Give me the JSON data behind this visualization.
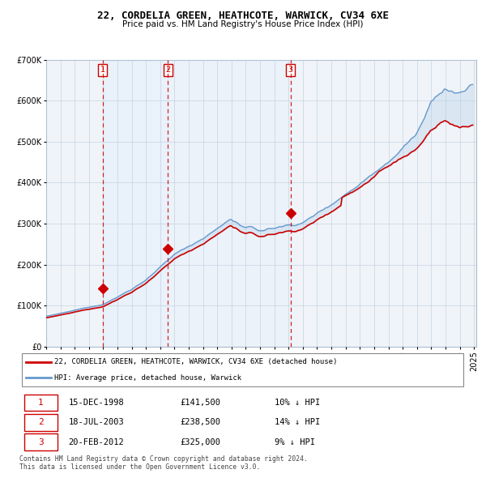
{
  "title1": "22, CORDELIA GREEN, HEATHCOTE, WARWICK, CV34 6XE",
  "title2": "Price paid vs. HM Land Registry's House Price Index (HPI)",
  "legend_line1": "22, CORDELIA GREEN, HEATHCOTE, WARWICK, CV34 6XE (detached house)",
  "legend_line2": "HPI: Average price, detached house, Warwick",
  "sale1_date": "15-DEC-1998",
  "sale1_price": 141500,
  "sale1_label": "1",
  "sale1_pct": "10% ↓ HPI",
  "sale2_date": "18-JUL-2003",
  "sale2_price": 238500,
  "sale2_label": "2",
  "sale2_pct": "14% ↓ HPI",
  "sale3_date": "20-FEB-2012",
  "sale3_price": 325000,
  "sale3_label": "3",
  "sale3_pct": "9% ↓ HPI",
  "footnote1": "Contains HM Land Registry data © Crown copyright and database right 2024.",
  "footnote2": "This data is licensed under the Open Government Licence v3.0.",
  "red_color": "#cc0000",
  "blue_color": "#6699cc",
  "fill_color": "#ccdff0",
  "grid_color": "#bbccdd",
  "marker_color": "#cc0000",
  "vline_color": "#cc0000",
  "label_box_color": "#cc0000",
  "ylim_max": 700000,
  "ylim_min": 0
}
